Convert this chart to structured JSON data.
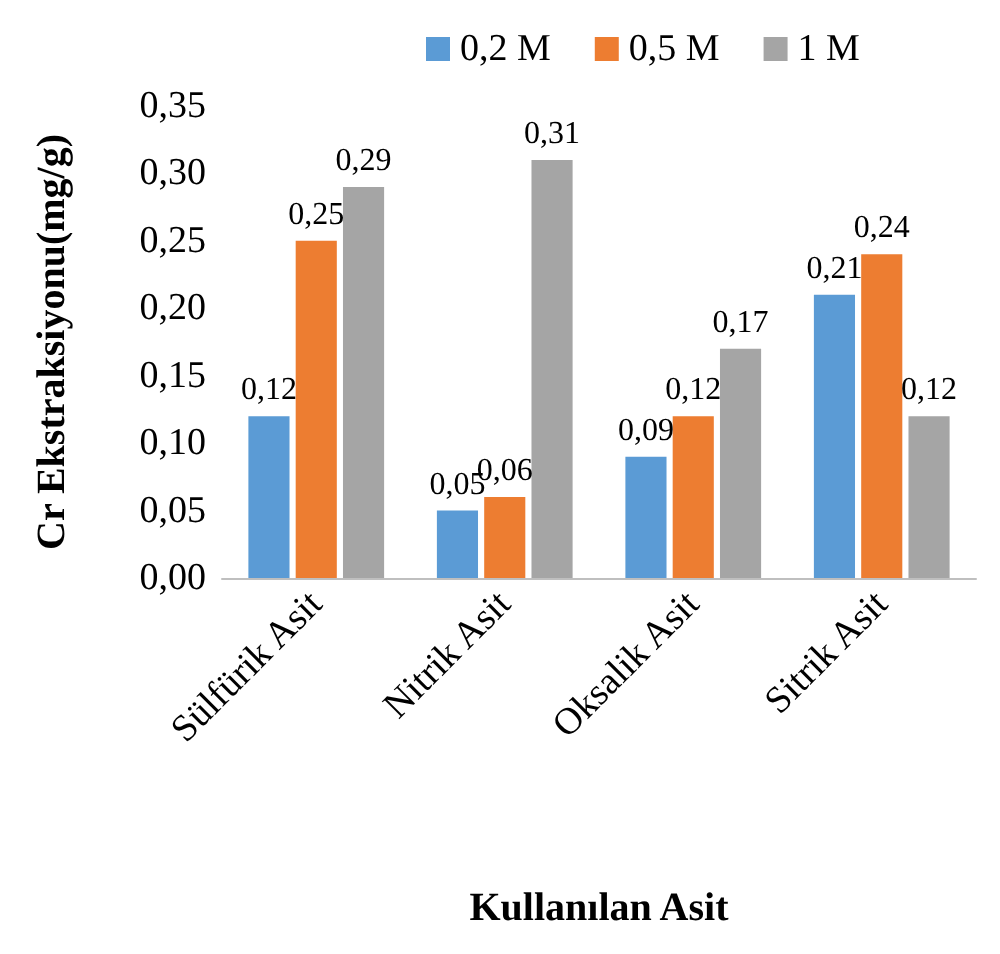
{
  "chart_data": {
    "type": "bar",
    "xlabel": "Kullanılan Asit",
    "ylabel": "Cr Ekstraksiyonu(mg/g)",
    "categories": [
      "Sülfürik Asit",
      "Nitrik Asit",
      "Oksalik Asit",
      "Sitrik Asit"
    ],
    "series": [
      {
        "name": "0,2 M",
        "color": "#5b9bd5",
        "values": [
          0.12,
          0.05,
          0.09,
          0.21
        ],
        "value_labels": [
          "0,12",
          "0,05",
          "0,09",
          "0,21"
        ]
      },
      {
        "name": "0,5 M",
        "color": "#ed7d31",
        "values": [
          0.25,
          0.06,
          0.12,
          0.24
        ],
        "value_labels": [
          "0,25",
          "0,06",
          "0,12",
          "0,24"
        ]
      },
      {
        "name": "1 M",
        "color": "#a5a5a5",
        "values": [
          0.29,
          0.31,
          0.17,
          0.12
        ],
        "value_labels": [
          "0,29",
          "0,31",
          "0,17",
          "0,12"
        ]
      }
    ],
    "ylim": [
      0,
      0.35
    ],
    "yticks": [
      {
        "value": 0,
        "label": "0,00"
      },
      {
        "value": 0.05,
        "label": "0,05"
      },
      {
        "value": 0.1,
        "label": "0,10"
      },
      {
        "value": 0.15,
        "label": "0,15"
      },
      {
        "value": 0.2,
        "label": "0,20"
      },
      {
        "value": 0.25,
        "label": "0,25"
      },
      {
        "value": 0.3,
        "label": "0,30"
      },
      {
        "value": 0.35,
        "label": "0,35"
      }
    ],
    "grid": false,
    "legend": "top"
  }
}
